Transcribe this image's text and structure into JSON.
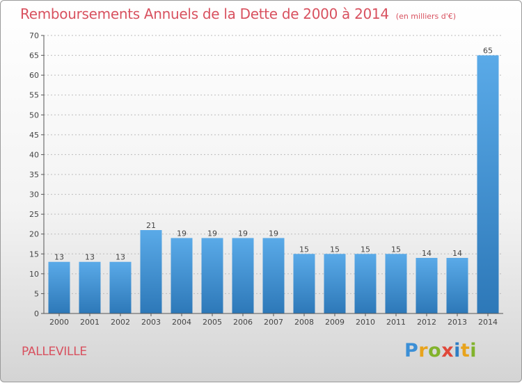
{
  "title": "Remboursements Annuels de la Dette de 2000 à 2014",
  "subtitle": "(en milliers d'€)",
  "commune": "PALLEVILLE",
  "logo": {
    "letters": [
      "P",
      "r",
      "o",
      "x",
      "i",
      "t",
      "i"
    ],
    "colors": [
      "#3b8fd6",
      "#e8a31c",
      "#82b32c",
      "#e0483a",
      "#2f7ec4",
      "#e8a31c",
      "#82b32c"
    ]
  },
  "colors": {
    "title": "#d8515f",
    "bar_top": "#5aaae8",
    "bar_bottom": "#2d78b8",
    "axis": "#555555",
    "grid": "#bbbbbb"
  },
  "chart_data": {
    "type": "bar",
    "title": "Remboursements Annuels de la Dette de 2000 à 2014",
    "subtitle": "(en milliers d'€)",
    "categories": [
      "2000",
      "2001",
      "2002",
      "2003",
      "2004",
      "2005",
      "2006",
      "2007",
      "2008",
      "2009",
      "2010",
      "2011",
      "2012",
      "2013",
      "2014"
    ],
    "values": [
      13,
      13,
      13,
      21,
      19,
      19,
      19,
      19,
      15,
      15,
      15,
      15,
      14,
      14,
      65
    ],
    "ylim": [
      0,
      70
    ],
    "yticks": [
      0,
      5,
      10,
      15,
      20,
      25,
      30,
      35,
      40,
      45,
      50,
      55,
      60,
      65,
      70
    ],
    "grid": "horizontal dashed",
    "legend": "none"
  }
}
